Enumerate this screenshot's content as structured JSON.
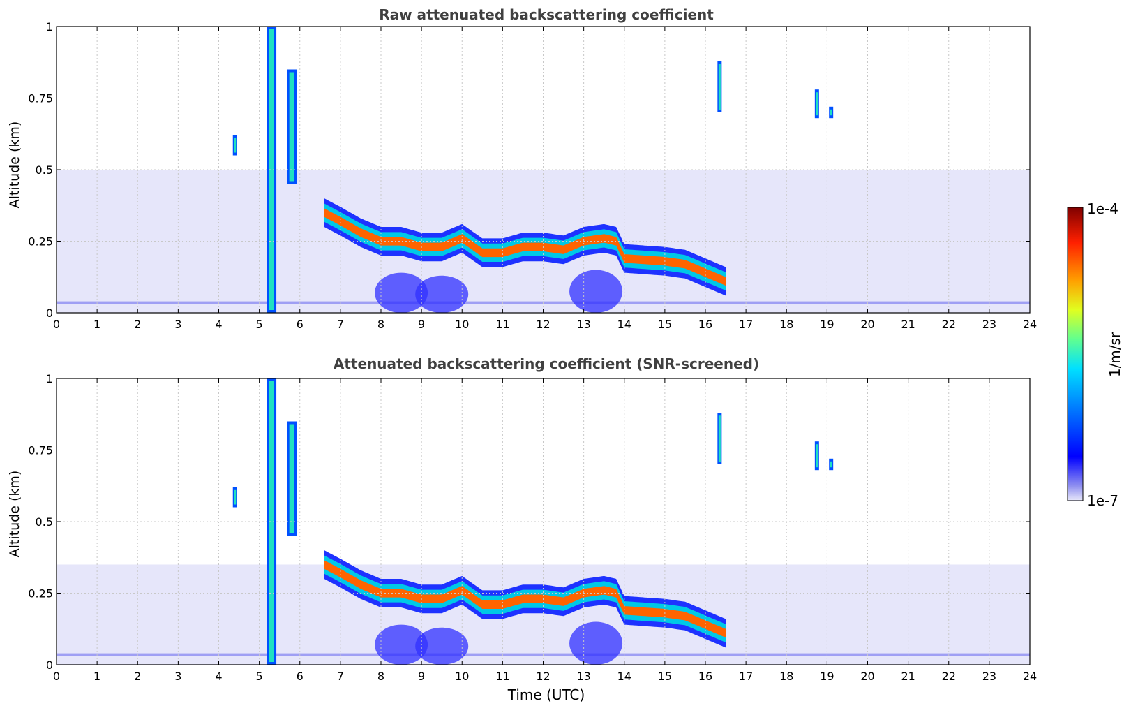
{
  "chart_data": [
    {
      "type": "heatmap",
      "title": "Raw attenuated backscattering coefficient",
      "xlabel": "",
      "ylabel": "Altitude (km)",
      "xlim": [
        0,
        24
      ],
      "ylim": [
        0,
        1
      ],
      "xticks": [
        "0",
        "1",
        "2",
        "3",
        "4",
        "5",
        "6",
        "7",
        "8",
        "9",
        "10",
        "11",
        "12",
        "13",
        "14",
        "15",
        "16",
        "17",
        "18",
        "19",
        "20",
        "21",
        "22",
        "23",
        "24"
      ],
      "yticks": [
        "0",
        "0.25",
        "0.5",
        "0.75",
        "1"
      ],
      "grid": true,
      "layer_top_km": [
        [
          6.6,
          0.4
        ],
        [
          7.0,
          0.37
        ],
        [
          7.5,
          0.33
        ],
        [
          8.0,
          0.3
        ],
        [
          8.5,
          0.3
        ],
        [
          9.0,
          0.28
        ],
        [
          9.5,
          0.28
        ],
        [
          10.0,
          0.31
        ],
        [
          10.5,
          0.26
        ],
        [
          11.0,
          0.26
        ],
        [
          11.5,
          0.28
        ],
        [
          12.0,
          0.28
        ],
        [
          12.5,
          0.27
        ],
        [
          13.0,
          0.3
        ],
        [
          13.5,
          0.31
        ],
        [
          13.8,
          0.3
        ],
        [
          14.0,
          0.24
        ],
        [
          15.0,
          0.23
        ],
        [
          15.5,
          0.22
        ],
        [
          16.0,
          0.19
        ],
        [
          16.5,
          0.16
        ]
      ],
      "layer_thickness_km": 0.1,
      "ground_noise_top_km": 0.5,
      "plume_features": [
        {
          "time": 5.3,
          "alt_low": 0.0,
          "alt_high": 1.0
        },
        {
          "time": 5.8,
          "alt_low": 0.45,
          "alt_high": 0.85
        },
        {
          "time": 4.4,
          "alt_low": 0.55,
          "alt_high": 0.62
        },
        {
          "time": 16.35,
          "alt_low": 0.7,
          "alt_high": 0.88
        },
        {
          "time": 18.75,
          "alt_low": 0.68,
          "alt_high": 0.78
        },
        {
          "time": 19.1,
          "alt_low": 0.68,
          "alt_high": 0.72
        }
      ],
      "low_aerosol_blobs": [
        {
          "time": 8.5,
          "alt_low": 0.0,
          "alt_high": 0.14
        },
        {
          "time": 9.5,
          "alt_low": 0.0,
          "alt_high": 0.13
        },
        {
          "time": 13.3,
          "alt_low": 0.0,
          "alt_high": 0.15
        }
      ]
    },
    {
      "type": "heatmap",
      "title": "Attenuated backscattering coefficient (SNR-screened)",
      "xlabel": "Time (UTC)",
      "ylabel": "Altitude (km)",
      "xlim": [
        0,
        24
      ],
      "ylim": [
        0,
        1
      ],
      "xticks": [
        "0",
        "1",
        "2",
        "3",
        "4",
        "5",
        "6",
        "7",
        "8",
        "9",
        "10",
        "11",
        "12",
        "13",
        "14",
        "15",
        "16",
        "17",
        "18",
        "19",
        "20",
        "21",
        "22",
        "23",
        "24"
      ],
      "yticks": [
        "0",
        "0.25",
        "0.5",
        "0.75",
        "1"
      ],
      "grid": true,
      "screened_background_top_km": 0.35
    }
  ],
  "colorbar": {
    "label": "1/m/sr",
    "max_label": "1e-4",
    "min_label": "1e-7",
    "scale": "log",
    "colormap": "jet"
  },
  "colors": {
    "background_low": "#e6e6fa",
    "layer_edge": "#1e32ff",
    "layer_mid": "#00c8e6",
    "layer_core": "#ff6400",
    "grid": "#c8c8c8",
    "title": "#404040"
  }
}
